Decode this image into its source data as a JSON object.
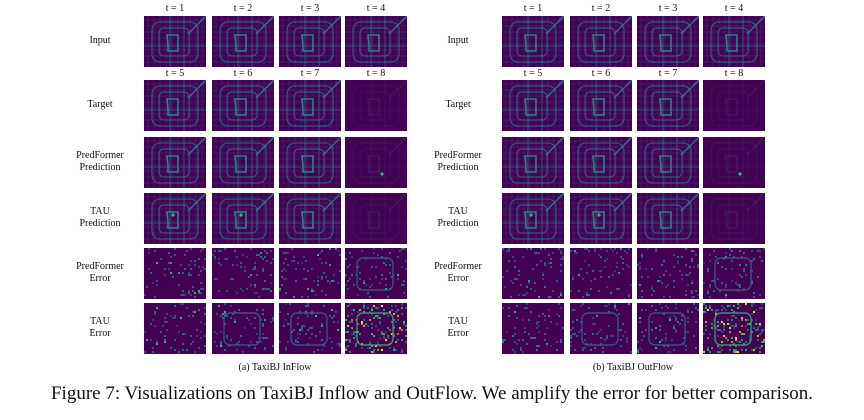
{
  "figure": {
    "caption": "Figure 7: Visualizations on TaxiBJ Inflow and OutFlow. We amplify the error for better comparison.",
    "colormap": [
      "#440154",
      "#31688e",
      "#35b779",
      "#fde725"
    ]
  },
  "panels": [
    {
      "subcaption": "(a) TaxiBJ InFlow",
      "input_time_labels": [
        "t = 1",
        "t = 2",
        "t = 3",
        "t = 4"
      ],
      "target_time_labels": [
        "t = 5",
        "t = 6",
        "t = 7",
        "t = 8"
      ],
      "rows": [
        {
          "label": [
            "Input"
          ],
          "kind": "input"
        },
        {
          "label": [
            "Target"
          ],
          "kind": "target"
        },
        {
          "label": [
            "PredFormer",
            "Prediction"
          ],
          "kind": "predformer-pred"
        },
        {
          "label": [
            "TAU",
            "Prediction"
          ],
          "kind": "tau-pred"
        },
        {
          "label": [
            "PredFormer",
            "Error"
          ],
          "kind": "predformer-error"
        },
        {
          "label": [
            "TAU",
            "Error"
          ],
          "kind": "tau-error"
        }
      ]
    },
    {
      "subcaption": "(b) TaxiBJ OutFlow",
      "input_time_labels": [
        "t = 1",
        "t = 2",
        "t = 3",
        "t = 4"
      ],
      "target_time_labels": [
        "t = 5",
        "t = 6",
        "t = 7",
        "t = 8"
      ],
      "rows": [
        {
          "label": [
            "Input"
          ],
          "kind": "input"
        },
        {
          "label": [
            "Target"
          ],
          "kind": "target"
        },
        {
          "label": [
            "PredFormer",
            "Prediction"
          ],
          "kind": "predformer-pred"
        },
        {
          "label": [
            "TAU",
            "Prediction"
          ],
          "kind": "tau-pred"
        },
        {
          "label": [
            "PredFormer",
            "Error"
          ],
          "kind": "predformer-error"
        },
        {
          "label": [
            "TAU",
            "Error"
          ],
          "kind": "tau-error"
        }
      ]
    }
  ]
}
